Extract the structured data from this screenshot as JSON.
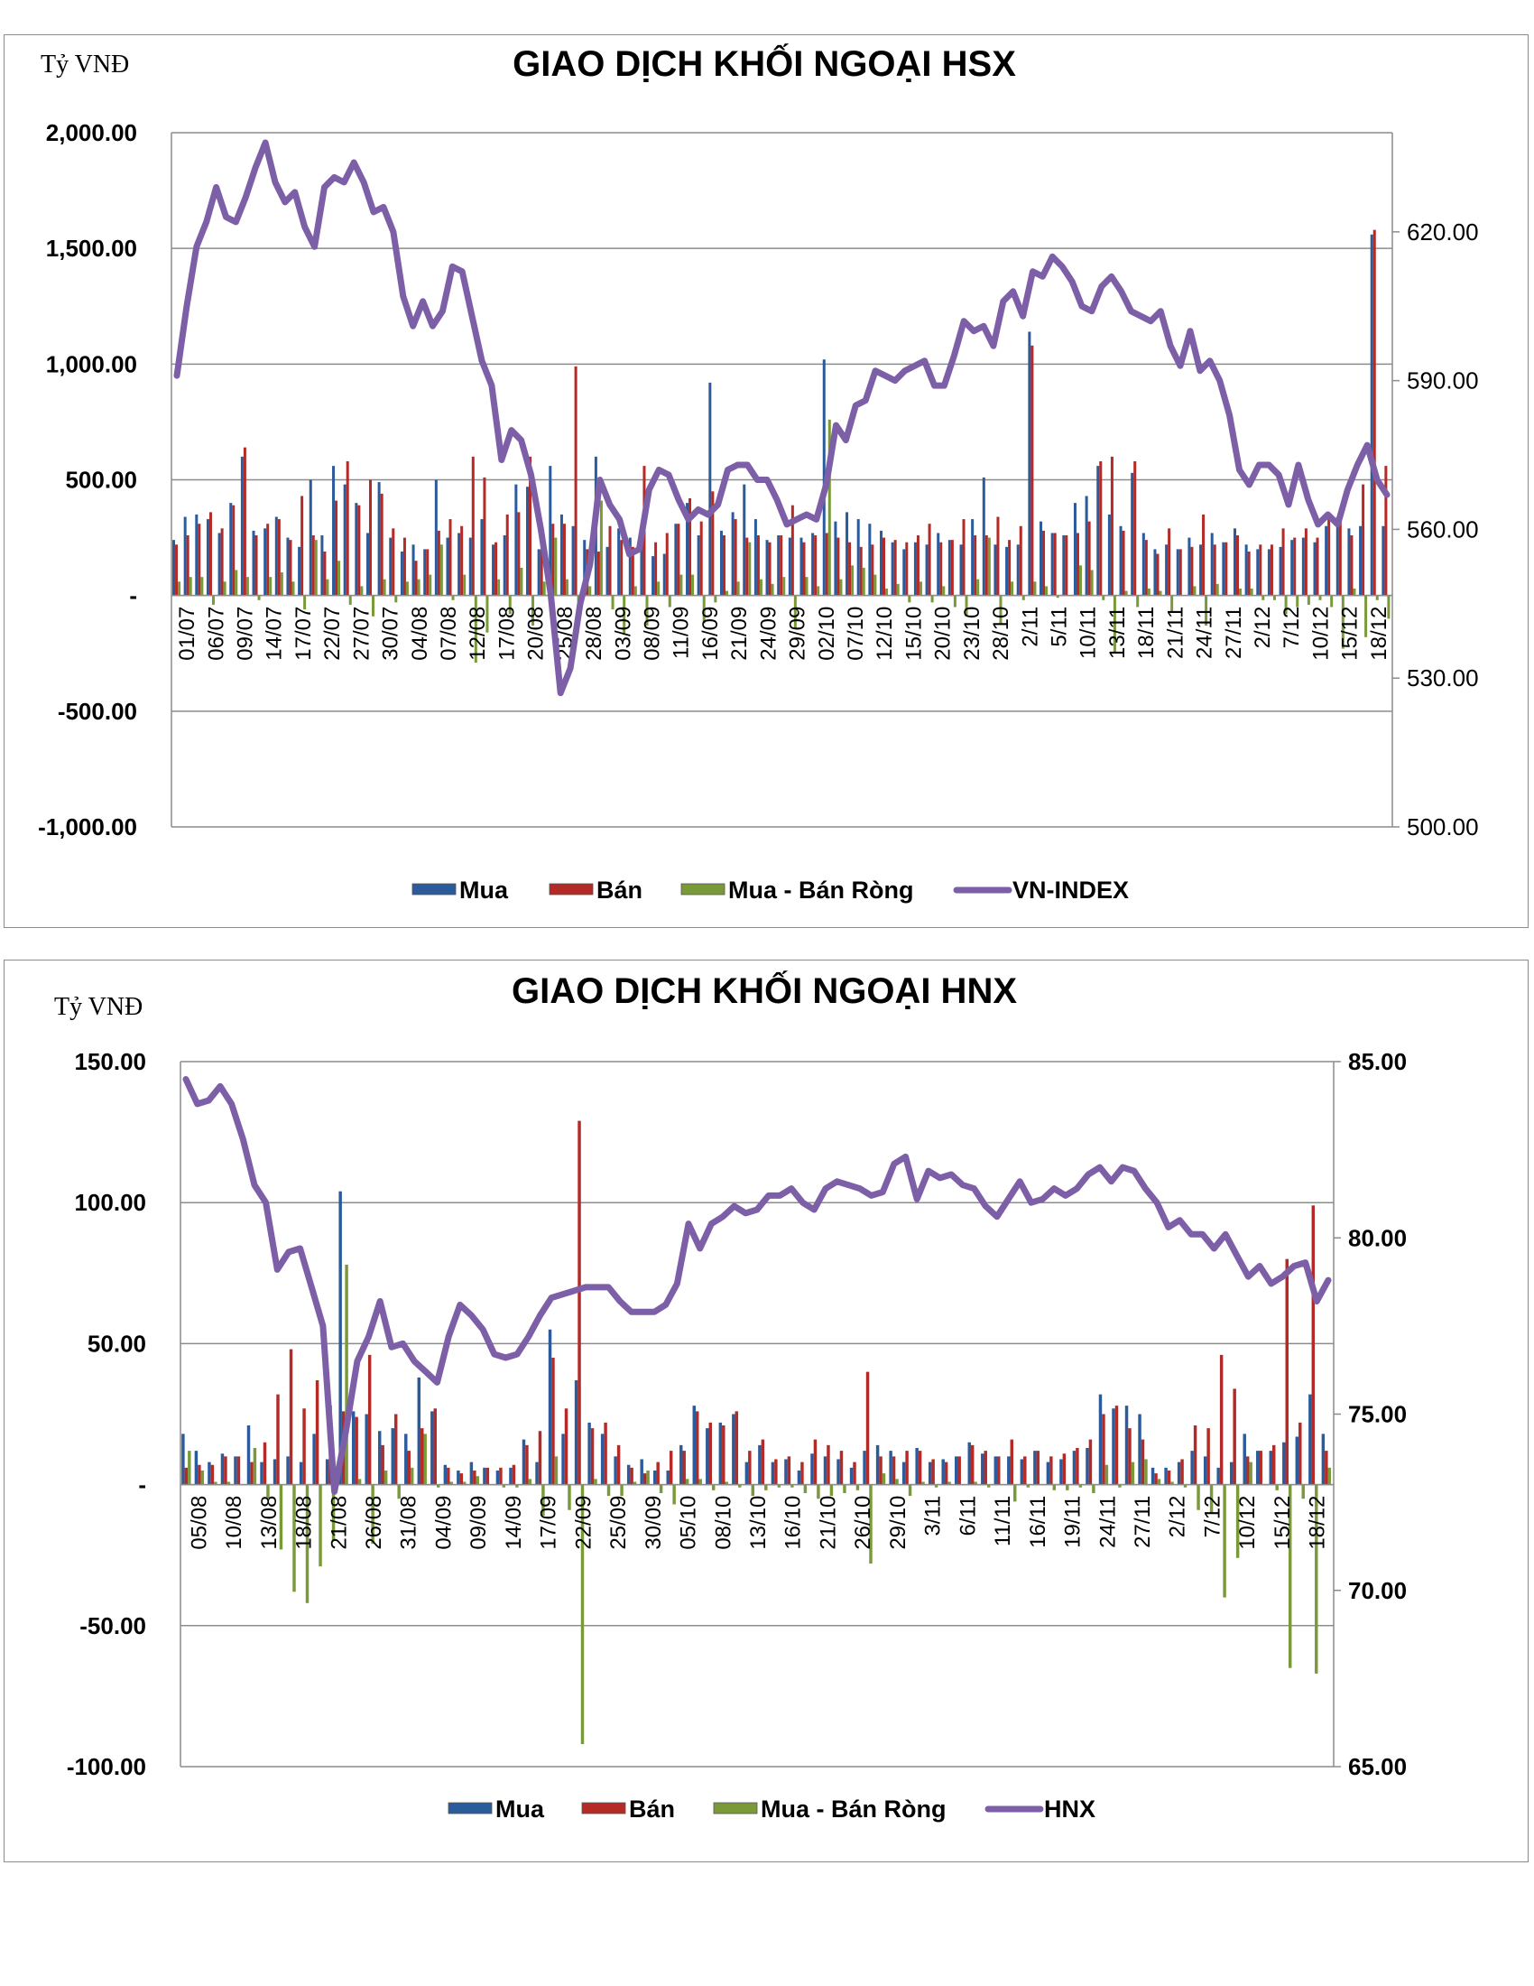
{
  "chart_data": [
    {
      "type": "bar",
      "title": "GIAO DỊCH KHỐI NGOẠI HSX",
      "unit_label": "Tỷ VNĐ",
      "ylim": [
        -1000,
        2000
      ],
      "y_ticks": [
        "2,000.00",
        "1,500.00",
        "1,000.00",
        "500.00",
        "-",
        "-500.00",
        "-1,000.00"
      ],
      "y2lim": [
        500,
        640
      ],
      "y2_ticks": [
        "620.00",
        "590.00",
        "560.00",
        "530.00",
        "500.00"
      ],
      "x_tick_labels": [
        "01/07",
        "06/07",
        "09/07",
        "14/07",
        "17/07",
        "22/07",
        "27/07",
        "30/07",
        "04/08",
        "07/08",
        "12/08",
        "17/08",
        "20/08",
        "25/08",
        "28/08",
        "03/09",
        "08/09",
        "11/09",
        "16/09",
        "21/09",
        "24/09",
        "29/09",
        "02/10",
        "07/10",
        "12/10",
        "15/10",
        "20/10",
        "23/10",
        "28/10",
        "2/11",
        "5/11",
        "10/11",
        "13/11",
        "18/11",
        "21/11",
        "24/11",
        "27/11",
        "2/12",
        "7/12",
        "10/12",
        "15/12",
        "18/12"
      ],
      "legend": [
        "Mua",
        "Bán",
        "Mua - Bán Ròng",
        "VN-INDEX"
      ],
      "colors": {
        "mua": "#2c5b9b",
        "ban": "#b32a26",
        "rong": "#7a9a3a",
        "index": "#7d5fa8"
      },
      "series": [
        {
          "name": "Mua",
          "values": [
            240,
            340,
            350,
            330,
            270,
            400,
            600,
            280,
            290,
            340,
            250,
            210,
            500,
            260,
            560,
            480,
            400,
            270,
            490,
            250,
            190,
            220,
            200,
            500,
            250,
            270,
            250,
            330,
            220,
            260,
            480,
            470,
            200,
            560,
            350,
            300,
            240,
            600,
            210,
            290,
            250,
            210,
            170,
            180,
            310,
            400,
            260,
            920,
            280,
            360,
            480,
            330,
            240,
            260,
            250,
            250,
            270,
            1020,
            320,
            360,
            330,
            310,
            280,
            230,
            200,
            230,
            220,
            270,
            240,
            220,
            330,
            510,
            220,
            210,
            220,
            1140,
            320,
            270,
            260,
            400,
            430,
            560,
            350,
            300,
            530,
            270,
            200,
            220,
            200,
            250,
            220,
            270,
            230,
            290,
            220,
            200,
            200,
            210,
            240,
            250,
            230,
            300,
            340,
            290,
            300,
            1560,
            300
          ]
        },
        {
          "name": "Bán",
          "values": [
            220,
            260,
            310,
            360,
            290,
            390,
            640,
            260,
            310,
            330,
            240,
            430,
            260,
            190,
            410,
            580,
            390,
            500,
            440,
            290,
            250,
            150,
            200,
            280,
            330,
            300,
            600,
            510,
            230,
            350,
            360,
            600,
            200,
            310,
            310,
            990,
            200,
            190,
            300,
            240,
            210,
            560,
            230,
            270,
            310,
            420,
            320,
            450,
            260,
            330,
            250,
            260,
            230,
            260,
            390,
            230,
            260,
            270,
            250,
            230,
            210,
            220,
            250,
            240,
            230,
            260,
            310,
            230,
            240,
            330,
            260,
            260,
            340,
            240,
            300,
            1080,
            280,
            270,
            260,
            270,
            320,
            580,
            600,
            280,
            580,
            240,
            180,
            290,
            200,
            210,
            350,
            220,
            230,
            260,
            190,
            220,
            220,
            290,
            250,
            290,
            250,
            350,
            340,
            260,
            480,
            1580,
            560
          ]
        },
        {
          "name": "Mua - Bán Ròng",
          "values": [
            60,
            80,
            80,
            -40,
            60,
            110,
            80,
            -20,
            80,
            100,
            60,
            -60,
            240,
            70,
            150,
            -40,
            40,
            -90,
            70,
            -30,
            60,
            70,
            90,
            220,
            -20,
            90,
            -290,
            -160,
            70,
            -80,
            120,
            -130,
            60,
            250,
            70,
            -30,
            40,
            410,
            -60,
            -170,
            40,
            -130,
            60,
            -50,
            90,
            90,
            -120,
            -30,
            20,
            60,
            230,
            70,
            50,
            80,
            -140,
            80,
            40,
            760,
            70,
            130,
            120,
            90,
            30,
            50,
            -30,
            60,
            -30,
            40,
            -50,
            -90,
            70,
            250,
            -120,
            60,
            -20,
            60,
            40,
            -10,
            0,
            130,
            110,
            -20,
            -250,
            20,
            -50,
            30,
            20,
            -70,
            0,
            40,
            -130,
            50,
            0,
            30,
            30,
            -20,
            -20,
            -80,
            -50,
            -40,
            -20,
            -50,
            -230,
            30,
            -180,
            -20,
            -100
          ]
        },
        {
          "name": "VN-INDEX",
          "values": [
            591,
            605,
            617,
            622,
            629,
            623,
            622,
            627,
            633,
            638,
            630,
            626,
            628,
            621,
            617,
            629,
            631,
            630,
            634,
            630,
            624,
            625,
            620,
            607,
            601,
            606,
            601,
            604,
            613,
            612,
            603,
            594,
            589,
            574,
            580,
            578,
            571,
            560,
            547,
            527,
            532,
            545,
            553,
            570,
            565,
            562,
            555,
            556,
            568,
            572,
            571,
            566,
            562,
            564,
            563,
            565,
            572,
            573,
            573,
            570,
            570,
            566,
            561,
            562,
            563,
            562,
            569,
            581,
            578,
            585,
            586,
            592,
            591,
            590,
            592,
            593,
            594,
            589,
            589,
            595,
            602,
            600,
            601,
            597,
            606,
            608,
            603,
            612,
            611,
            615,
            613,
            610,
            605,
            604,
            609,
            611,
            608,
            604,
            603,
            602,
            604,
            597,
            593,
            600,
            592,
            594,
            590,
            583,
            572,
            569,
            573,
            573,
            571,
            565,
            573,
            566,
            561,
            563,
            561,
            568,
            573,
            577,
            570,
            567
          ]
        }
      ]
    },
    {
      "type": "bar",
      "title": "GIAO DỊCH KHỐI NGOẠI HNX",
      "unit_label": "Tỷ VNĐ",
      "ylim": [
        -100,
        150
      ],
      "y_ticks": [
        "150.00",
        "100.00",
        "50.00",
        "-",
        "-50.00",
        "-100.00"
      ],
      "y2lim": [
        65,
        85
      ],
      "y2_ticks": [
        "85.00",
        "80.00",
        "75.00",
        "70.00",
        "65.00"
      ],
      "x_tick_labels": [
        "05/08",
        "10/08",
        "13/08",
        "18/08",
        "21/08",
        "26/08",
        "31/08",
        "04/09",
        "09/09",
        "14/09",
        "17/09",
        "22/09",
        "25/09",
        "30/09",
        "05/10",
        "08/10",
        "13/10",
        "16/10",
        "21/10",
        "26/10",
        "29/10",
        "3/11",
        "6/11",
        "11/11",
        "16/11",
        "19/11",
        "24/11",
        "27/11",
        "2/12",
        "7/12",
        "10/12",
        "15/12",
        "18/12"
      ],
      "legend": [
        "Mua",
        "Bán",
        "Mua - Bán Ròng",
        "HNX"
      ],
      "colors": {
        "mua": "#2c5b9b",
        "ban": "#b32a26",
        "rong": "#7a9a3a",
        "index": "#7d5fa8"
      },
      "series": [
        {
          "name": "Mua",
          "values": [
            18,
            12,
            8,
            11,
            10,
            21,
            8,
            9,
            10,
            8,
            18,
            9,
            104,
            26,
            25,
            19,
            20,
            18,
            38,
            26,
            7,
            5,
            8,
            6,
            5,
            6,
            16,
            8,
            55,
            18,
            37,
            22,
            18,
            10,
            7,
            9,
            5,
            5,
            14,
            28,
            20,
            22,
            25,
            8,
            14,
            8,
            9,
            5,
            11,
            10,
            9,
            6,
            12,
            14,
            12,
            8,
            13,
            8,
            9,
            10,
            15,
            11,
            10,
            10,
            9,
            12,
            8,
            9,
            12,
            13,
            32,
            27,
            28,
            25,
            6,
            6,
            8,
            12,
            10,
            6,
            8,
            18,
            12,
            12,
            15,
            17,
            32,
            18
          ]
        },
        {
          "name": "Bán",
          "values": [
            6,
            7,
            7,
            10,
            10,
            8,
            15,
            32,
            48,
            27,
            37,
            28,
            26,
            24,
            46,
            14,
            25,
            12,
            20,
            27,
            6,
            4,
            5,
            6,
            6,
            7,
            14,
            19,
            45,
            27,
            129,
            20,
            22,
            14,
            6,
            4,
            8,
            12,
            12,
            26,
            22,
            21,
            26,
            12,
            16,
            9,
            10,
            8,
            16,
            14,
            12,
            8,
            40,
            10,
            10,
            12,
            12,
            9,
            8,
            10,
            14,
            12,
            10,
            16,
            10,
            12,
            10,
            11,
            13,
            16,
            25,
            28,
            20,
            16,
            4,
            5,
            9,
            21,
            20,
            46,
            34,
            10,
            12,
            14,
            80,
            22,
            99,
            12
          ]
        },
        {
          "name": "Mua - Bán Ròng",
          "values": [
            12,
            5,
            1,
            1,
            0,
            13,
            -5,
            -23,
            -38,
            -42,
            -29,
            -20,
            78,
            2,
            -21,
            5,
            -5,
            6,
            18,
            -1,
            1,
            1,
            3,
            0,
            -1,
            -1,
            2,
            -11,
            10,
            -9,
            -92,
            2,
            -4,
            -4,
            1,
            5,
            -3,
            -7,
            2,
            2,
            -2,
            1,
            -1,
            -4,
            -2,
            -1,
            -1,
            -3,
            -5,
            -4,
            -3,
            -2,
            -28,
            4,
            2,
            -4,
            1,
            -1,
            1,
            0,
            1,
            -1,
            0,
            -6,
            -1,
            0,
            -2,
            -2,
            -1,
            -3,
            7,
            -1,
            8,
            9,
            2,
            1,
            -1,
            -9,
            -10,
            -40,
            -26,
            8,
            0,
            -2,
            -65,
            -5,
            -67,
            6
          ]
        },
        {
          "name": "HNX",
          "values": [
            84.5,
            83.8,
            83.9,
            84.3,
            83.8,
            82.8,
            81.5,
            81.0,
            79.1,
            79.6,
            79.7,
            78.6,
            77.5,
            72.8,
            74.5,
            76.5,
            77.2,
            78.2,
            76.9,
            77.0,
            76.5,
            76.2,
            75.9,
            77.2,
            78.1,
            77.8,
            77.4,
            76.7,
            76.6,
            76.7,
            77.2,
            77.8,
            78.3,
            78.4,
            78.5,
            78.6,
            78.6,
            78.6,
            78.2,
            77.9,
            77.9,
            77.9,
            78.1,
            78.7,
            80.4,
            79.7,
            80.4,
            80.6,
            80.9,
            80.7,
            80.8,
            81.2,
            81.2,
            81.4,
            81.0,
            80.8,
            81.4,
            81.6,
            81.5,
            81.4,
            81.2,
            81.3,
            82.1,
            82.3,
            81.1,
            81.9,
            81.7,
            81.8,
            81.5,
            81.4,
            80.9,
            80.6,
            81.1,
            81.6,
            81.0,
            81.1,
            81.4,
            81.2,
            81.4,
            81.8,
            82.0,
            81.6,
            82.0,
            81.9,
            81.4,
            81.0,
            80.3,
            80.5,
            80.1,
            80.1,
            79.7,
            80.1,
            79.5,
            78.9,
            79.2,
            78.7,
            78.9,
            79.2,
            79.3,
            78.2,
            78.8
          ]
        }
      ]
    }
  ]
}
